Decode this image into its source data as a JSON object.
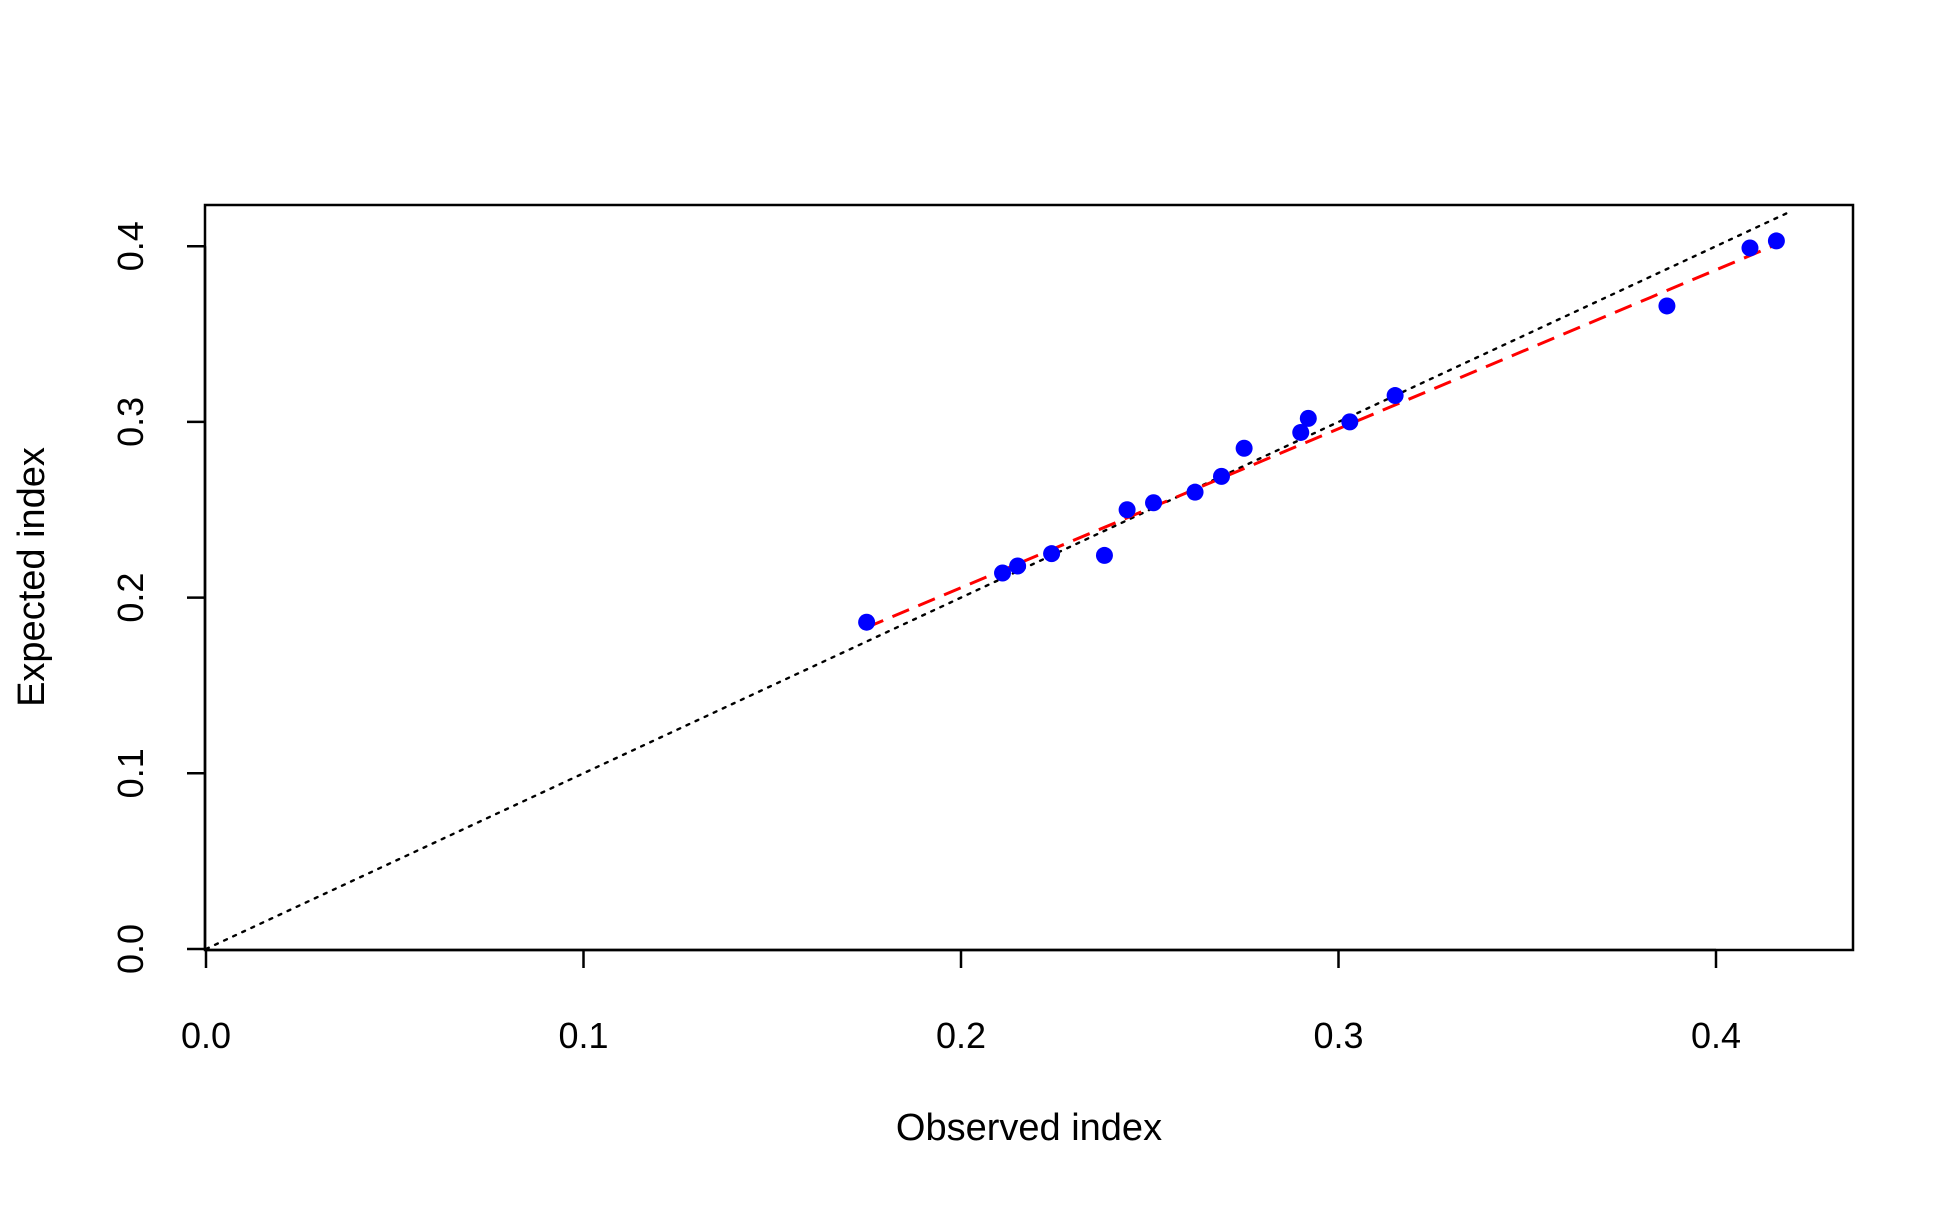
{
  "chart_data": {
    "type": "scatter",
    "title": "",
    "xlabel": "Observed index",
    "ylabel": "Expected index",
    "xlim": [
      0,
      0.437
    ],
    "ylim": [
      0,
      0.423
    ],
    "xticks": [
      0.0,
      0.1,
      0.2,
      0.3,
      0.4
    ],
    "yticks": [
      0.0,
      0.1,
      0.2,
      0.3,
      0.4
    ],
    "xtick_labels": [
      "0.0",
      "0.1",
      "0.2",
      "0.3",
      "0.4"
    ],
    "ytick_labels": [
      "0.0",
      "0.1",
      "0.2",
      "0.3",
      "0.4"
    ],
    "grid": false,
    "legend": "none",
    "points": {
      "color": "#0000ff",
      "x": [
        0.175,
        0.211,
        0.215,
        0.224,
        0.238,
        0.244,
        0.251,
        0.262,
        0.269,
        0.275,
        0.29,
        0.292,
        0.303,
        0.315,
        0.387,
        0.409,
        0.416
      ],
      "y": [
        0.186,
        0.214,
        0.218,
        0.225,
        0.224,
        0.25,
        0.254,
        0.26,
        0.269,
        0.285,
        0.294,
        0.302,
        0.3,
        0.315,
        0.366,
        0.399,
        0.403
      ]
    },
    "reference_line": {
      "style": "dotted",
      "color": "#000000",
      "x": [
        0,
        0.42
      ],
      "y": [
        0,
        0.42
      ]
    },
    "fit_line": {
      "style": "dashed",
      "color": "#ff0000",
      "x": [
        0.175,
        0.416
      ],
      "y": [
        0.183,
        0.401
      ]
    }
  }
}
